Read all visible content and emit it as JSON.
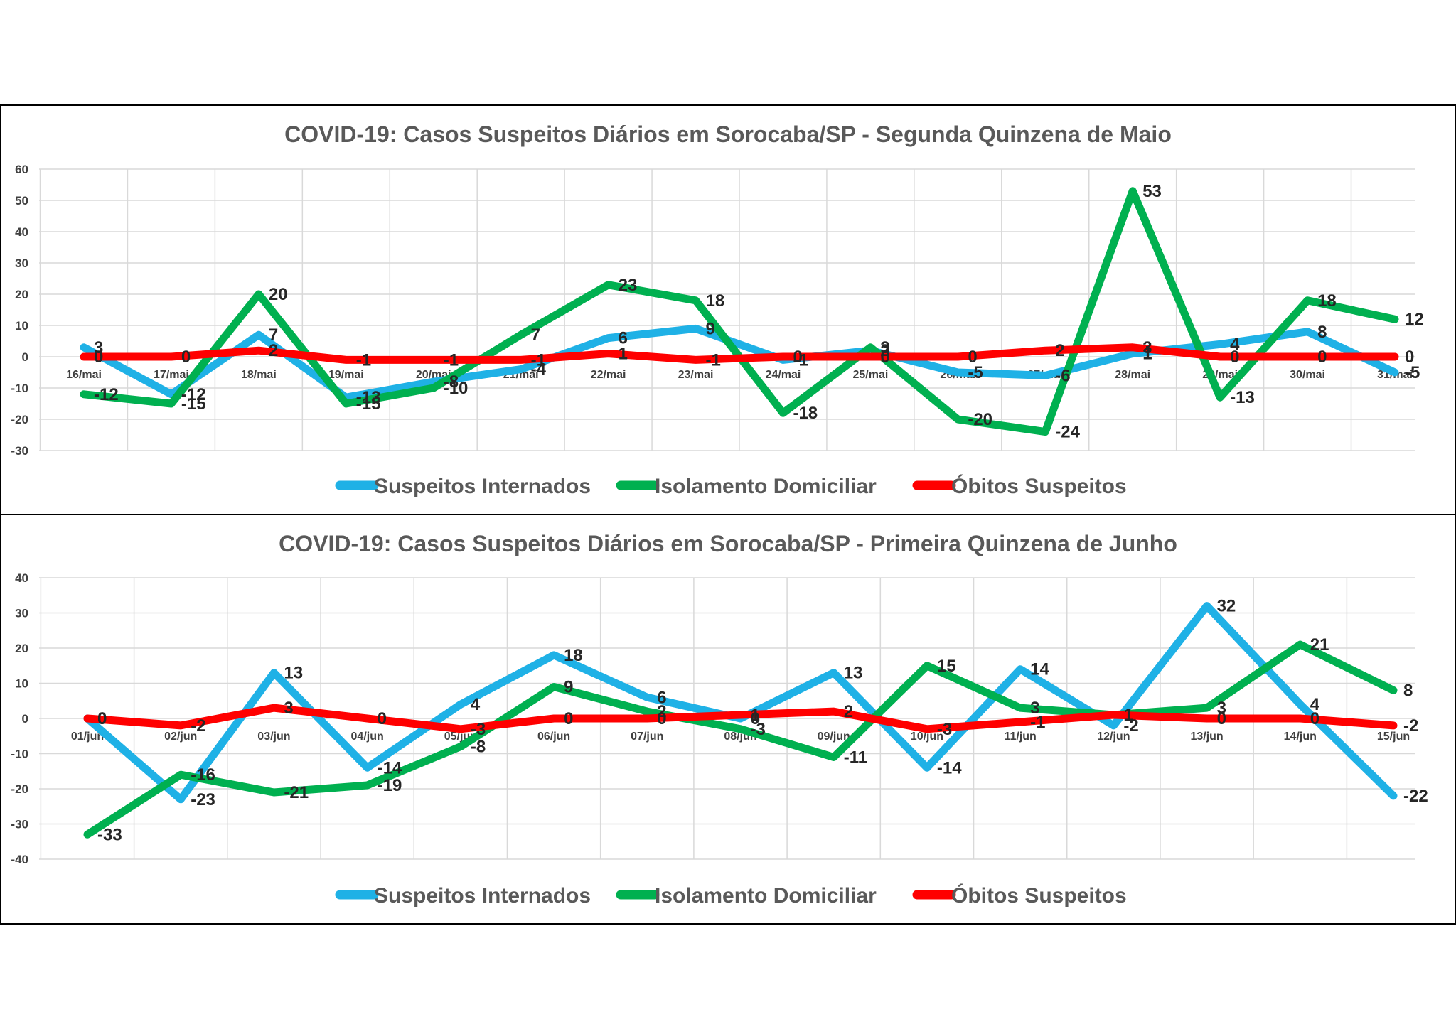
{
  "chart_data": [
    {
      "type": "line",
      "title": "COVID-19: Casos Suspeitos Diários em Sorocaba/SP - Segunda Quinzena de Maio",
      "categories": [
        "16/mai",
        "17/mai",
        "18/mai",
        "19/mai",
        "20/mai",
        "21/mai",
        "22/mai",
        "23/mai",
        "24/mai",
        "25/mai",
        "26/mai",
        "27/mai",
        "28/mai",
        "29/mai",
        "30/mai",
        "31/mai"
      ],
      "ylim": [
        -30,
        60
      ],
      "yticks": [
        -30,
        -20,
        -10,
        0,
        10,
        20,
        30,
        40,
        50,
        60
      ],
      "grid": true,
      "legend": "bottom",
      "series": [
        {
          "name": "Suspeitos Internados",
          "color": "#1FB1E6",
          "values": [
            3,
            -12,
            7,
            -13,
            -8,
            -4,
            6,
            9,
            -1,
            2,
            -5,
            -6,
            1,
            4,
            8,
            -5
          ]
        },
        {
          "name": "Isolamento Domiciliar",
          "color": "#00B050",
          "values": [
            -12,
            -15,
            20,
            -15,
            -10,
            7,
            23,
            18,
            -18,
            3,
            -20,
            -24,
            53,
            -13,
            18,
            12
          ]
        },
        {
          "name": "Óbitos Suspeitos",
          "color": "#FF0000",
          "values": [
            0,
            0,
            2,
            -1,
            -1,
            -1,
            1,
            -1,
            0,
            0,
            0,
            2,
            3,
            0,
            0,
            0
          ]
        }
      ]
    },
    {
      "type": "line",
      "title": "COVID-19: Casos Suspeitos Diários em Sorocaba/SP  - Primeira Quinzena de Junho",
      "categories": [
        "01/jun",
        "02/jun",
        "03/jun",
        "04/jun",
        "05/jun",
        "06/jun",
        "07/jun",
        "08/jun",
        "09/jun",
        "10/jun",
        "11/jun",
        "12/jun",
        "13/jun",
        "14/jun",
        "15/jun"
      ],
      "ylim": [
        -40,
        40
      ],
      "yticks": [
        -40,
        -30,
        -20,
        -10,
        0,
        10,
        20,
        30,
        40
      ],
      "grid": true,
      "legend": "bottom",
      "series": [
        {
          "name": "Suspeitos Internados",
          "color": "#1FB1E6",
          "values": [
            0,
            -23,
            13,
            -14,
            4,
            18,
            6,
            0,
            13,
            -14,
            14,
            -2,
            32,
            4,
            -22
          ]
        },
        {
          "name": "Isolamento Domiciliar",
          "color": "#00B050",
          "values": [
            -33,
            -16,
            -21,
            -19,
            -8,
            9,
            2,
            -3,
            -11,
            15,
            3,
            1,
            3,
            21,
            8
          ]
        },
        {
          "name": "Óbitos Suspeitos",
          "color": "#FF0000",
          "values": [
            0,
            -2,
            3,
            0,
            -3,
            0,
            0,
            1,
            2,
            -3,
            -1,
            1,
            0,
            0,
            -2
          ]
        }
      ]
    }
  ]
}
